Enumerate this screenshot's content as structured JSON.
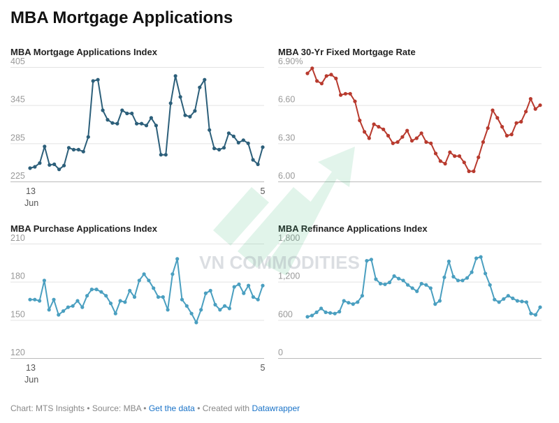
{
  "page": {
    "title": "MBA Mortgage Applications"
  },
  "footer": {
    "prefix": "Chart: MTS Insights • Source: MBA • ",
    "get_data": "Get the data",
    "mid": " • Created with ",
    "datawrapper": "Datawrapper"
  },
  "watermark": {
    "text": "VN COMMODITIES"
  },
  "colors": {
    "index": "#2c5f7a",
    "rate": "#b83a2e",
    "purchase": "#4a9fc0",
    "refinance": "#4a9fc0",
    "watermark": "#3cb878"
  },
  "chart_data": [
    {
      "id": "index",
      "type": "line",
      "title": "MBA Mortgage Applications Index",
      "y_ticks": [
        "405",
        "345",
        "285",
        "225"
      ],
      "ylim": [
        225,
        405
      ],
      "x_labels": [
        "13",
        "5"
      ],
      "x_sublabel": "Jun",
      "values": [
        246,
        248,
        254,
        280,
        251,
        252,
        244,
        250,
        278,
        275,
        275,
        272,
        295,
        383,
        385,
        337,
        322,
        317,
        316,
        337,
        332,
        332,
        316,
        316,
        313,
        325,
        313,
        267,
        267,
        348,
        391,
        358,
        329,
        327,
        336,
        373,
        385,
        306,
        277,
        275,
        278,
        301,
        296,
        286,
        290,
        285,
        259,
        252,
        279
      ]
    },
    {
      "id": "rate",
      "type": "line",
      "title": "MBA 30-Yr Fixed Mortgage Rate",
      "y_ticks": [
        "6.90%",
        "6.60",
        "6.30",
        "6.00"
      ],
      "ylim": [
        6.0,
        6.9
      ],
      "values": [
        6.85,
        6.89,
        6.79,
        6.77,
        6.83,
        6.84,
        6.81,
        6.68,
        6.69,
        6.69,
        6.63,
        6.48,
        6.39,
        6.34,
        6.45,
        6.43,
        6.41,
        6.36,
        6.3,
        6.31,
        6.35,
        6.4,
        6.32,
        6.34,
        6.38,
        6.31,
        6.3,
        6.22,
        6.16,
        6.14,
        6.23,
        6.2,
        6.2,
        6.15,
        6.08,
        6.08,
        6.19,
        6.31,
        6.42,
        6.56,
        6.5,
        6.43,
        6.36,
        6.37,
        6.46,
        6.47,
        6.55,
        6.65,
        6.57,
        6.6
      ]
    },
    {
      "id": "purchase",
      "type": "line",
      "title": "MBA Purchase Applications Index",
      "y_ticks": [
        "210",
        "180",
        "150",
        "120"
      ],
      "ylim": [
        120,
        210
      ],
      "x_labels": [
        "13",
        "5"
      ],
      "x_sublabel": "Jun",
      "values": [
        166,
        166,
        165,
        181,
        158,
        166,
        154,
        157,
        160,
        161,
        165,
        160,
        169,
        174,
        174,
        172,
        169,
        163,
        155,
        165,
        164,
        173,
        168,
        181,
        186,
        181,
        175,
        168,
        168,
        158,
        186,
        198,
        166,
        161,
        155,
        148,
        158,
        171,
        173,
        162,
        158,
        161,
        159,
        176,
        178,
        171,
        177,
        168,
        166,
        177
      ]
    },
    {
      "id": "refinance",
      "type": "line",
      "title": "MBA Refinance Applications Index",
      "y_ticks": [
        "1,800",
        "1,200",
        "600",
        "0"
      ],
      "ylim": [
        0,
        1800
      ],
      "values": [
        650,
        670,
        720,
        780,
        720,
        710,
        700,
        730,
        900,
        870,
        850,
        880,
        980,
        1530,
        1550,
        1240,
        1170,
        1160,
        1190,
        1290,
        1250,
        1220,
        1150,
        1100,
        1050,
        1170,
        1150,
        1100,
        850,
        900,
        1270,
        1520,
        1280,
        1220,
        1220,
        1260,
        1350,
        1570,
        1590,
        1330,
        1150,
        920,
        880,
        930,
        980,
        940,
        900,
        890,
        880,
        700,
        680,
        800
      ]
    }
  ]
}
